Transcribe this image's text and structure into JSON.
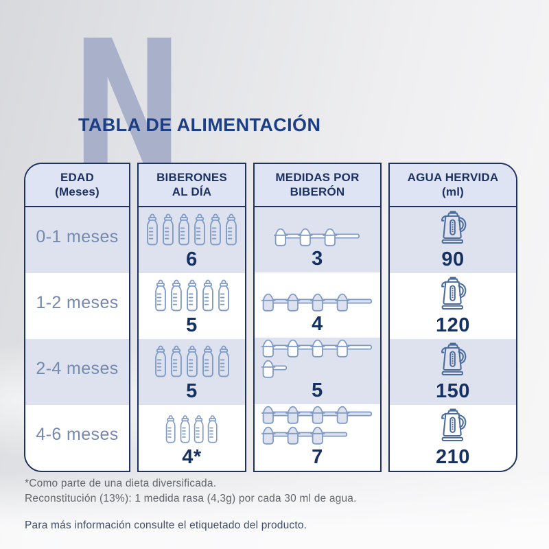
{
  "watermark": "N",
  "title": "TABLA DE ALIMENTACIÓN",
  "colors": {
    "navy_border": "#1d3261",
    "title_blue": "#1c3e84",
    "number_navy": "#16305f",
    "age_blue": "#7589ae",
    "bottle_scoop_blue": "#7f9bc5",
    "kettle_blue": "#4a6b9d",
    "header_bg": "#dee4f3",
    "row_alt_bg": "#dde2ee",
    "watermark_blue": "#a9b0ca"
  },
  "table": {
    "columns": [
      {
        "id": "edad",
        "header_line1": "EDAD",
        "header_line2": "(Meses)"
      },
      {
        "id": "biberones",
        "header_line1": "BIBERONES",
        "header_line2": "AL DÍA"
      },
      {
        "id": "medidas",
        "header_line1": "MEDIDAS POR",
        "header_line2": "BIBERÓN"
      },
      {
        "id": "agua",
        "header_line1": "AGUA HERVIDA",
        "header_line2": "(ml)"
      }
    ],
    "rows": [
      {
        "age": "0-1 meses",
        "bottles": 6,
        "bottles_label": "6",
        "scoop_lines": [
          3
        ],
        "scoops_label": "3",
        "water_label": "90"
      },
      {
        "age": "1-2 meses",
        "bottles": 5,
        "bottles_label": "5",
        "scoop_lines": [
          4
        ],
        "scoops_label": "4",
        "water_label": "120"
      },
      {
        "age": "2-4 meses",
        "bottles": 5,
        "bottles_label": "5",
        "scoop_lines": [
          4,
          1
        ],
        "scoops_label": "5",
        "water_label": "150"
      },
      {
        "age": "4-6 meses",
        "bottles": 4,
        "bottles_label": "4*",
        "scoop_lines": [
          4,
          3
        ],
        "scoops_label": "7",
        "water_label": "210"
      }
    ]
  },
  "footnotes": [
    "*Como parte de una dieta diversificada.",
    "Reconstitución (13%): 1 medida rasa (4,3g) por cada 30 ml de agua."
  ],
  "footer": "Para más información consulte el etiquetado del producto."
}
